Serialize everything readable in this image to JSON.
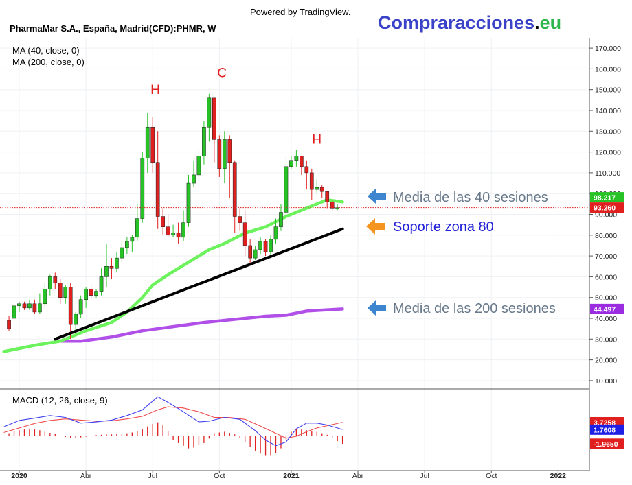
{
  "header": {
    "powered_by": "Powered by TradingView.",
    "symbol_title": "PharmaMar S.A., España, Madrid(CFD):PHMR, W",
    "brand_main": "Compraracciones",
    "brand_dot": ".",
    "brand_tld": "eu"
  },
  "legend": {
    "ma40": "MA (40, close, 0)",
    "ma200": "MA (200, close, 0)",
    "macd": "MACD (12, 26, close, 9)"
  },
  "colors": {
    "up_candle": "#26c226",
    "down_candle": "#e0201f",
    "ma40": "#6cf25c",
    "ma200": "#b050e8",
    "support": "#000000",
    "price_line": "#e0201f",
    "macd_line": "#3f3ff0",
    "signal_line": "#f04a4a",
    "histogram": "#e0201f",
    "brand_main": "#3b43c8",
    "brand_tld": "#2fb64a",
    "pattern_labels": "#e0201f",
    "annotation_text": "#66788a",
    "support_text": "#1f1fd6",
    "arrow_blue": "#3d86cf",
    "arrow_orange": "#f5941f"
  },
  "annotations": {
    "ma40": "Media de las 40 sesiones",
    "support": "Soporte zona 80",
    "ma200": "Media de las 200 sesiones"
  },
  "chart_data": {
    "type": "candlestick",
    "title": "PharmaMar S.A., España, Madrid(CFD):PHMR, W",
    "y_axis": {
      "min": 0,
      "max": 175,
      "ticks": [
        "10.000",
        "20.000",
        "30.000",
        "40.000",
        "50.000",
        "60.000",
        "70.000",
        "80.000",
        "90.000",
        "100.000",
        "110.000",
        "120.000",
        "130.000",
        "140.000",
        "150.000",
        "160.000",
        "170.000"
      ]
    },
    "x_axis": {
      "tick_labels": [
        "2020",
        "Abr",
        "Jul",
        "Oct",
        "2021",
        "Abr",
        "Jul",
        "Oct",
        "2022"
      ],
      "tick_weeks": [
        0,
        13,
        26,
        39,
        53,
        66,
        79,
        92,
        105
      ]
    },
    "price_badges": [
      {
        "label": "98.217",
        "value": 98.217,
        "color": "#26c226"
      },
      {
        "label": "93.260",
        "value": 93.26,
        "color": "#e0201f"
      },
      {
        "label": "44.497",
        "value": 44.497,
        "color": "#9c2ce0"
      }
    ],
    "last_price": 93.26,
    "candles": [
      [
        -2,
        39,
        35,
        41,
        34
      ],
      [
        -1,
        40,
        46,
        47,
        38
      ],
      [
        0,
        46,
        47,
        48,
        43
      ],
      [
        1,
        47,
        45,
        48,
        44
      ],
      [
        2,
        45,
        47,
        49,
        44
      ],
      [
        3,
        47,
        43,
        49,
        42
      ],
      [
        4,
        43,
        47,
        52,
        42
      ],
      [
        5,
        47,
        54,
        57,
        45
      ],
      [
        6,
        54,
        60,
        61,
        51
      ],
      [
        7,
        60,
        57,
        62,
        54
      ],
      [
        8,
        57,
        50,
        59,
        47
      ],
      [
        9,
        50,
        55,
        56,
        47
      ],
      [
        10,
        55,
        37,
        57,
        30
      ],
      [
        11,
        37,
        42,
        43,
        34
      ],
      [
        12,
        42,
        49,
        51,
        40
      ],
      [
        13,
        49,
        54,
        55,
        45
      ],
      [
        14,
        54,
        51,
        56,
        49
      ],
      [
        15,
        51,
        53,
        54,
        50
      ],
      [
        16,
        53,
        60,
        64,
        51
      ],
      [
        17,
        60,
        65,
        76,
        55
      ],
      [
        18,
        65,
        64,
        69,
        59
      ],
      [
        19,
        64,
        69,
        72,
        62
      ],
      [
        20,
        69,
        74,
        77,
        67
      ],
      [
        21,
        74,
        77,
        79,
        71
      ],
      [
        22,
        77,
        79,
        80,
        72
      ],
      [
        23,
        79,
        88,
        95,
        77
      ],
      [
        24,
        88,
        117,
        120,
        86
      ],
      [
        25,
        117,
        132,
        139,
        110
      ],
      [
        26,
        132,
        115,
        137,
        110
      ],
      [
        27,
        115,
        89,
        130,
        83
      ],
      [
        28,
        89,
        84,
        93,
        80
      ],
      [
        29,
        84,
        80,
        90,
        79
      ],
      [
        30,
        80,
        81,
        85,
        79
      ],
      [
        31,
        81,
        79,
        86,
        76
      ],
      [
        32,
        79,
        86,
        92,
        77
      ],
      [
        33,
        86,
        105,
        109,
        84
      ],
      [
        34,
        105,
        109,
        116,
        103
      ],
      [
        35,
        109,
        118,
        122,
        106
      ],
      [
        36,
        118,
        132,
        135,
        114
      ],
      [
        37,
        132,
        146,
        148,
        125
      ],
      [
        38,
        146,
        126,
        130,
        115
      ],
      [
        39,
        126,
        112,
        128,
        108
      ],
      [
        40,
        112,
        126,
        130,
        105
      ],
      [
        41,
        126,
        115,
        128,
        98
      ],
      [
        42,
        115,
        89,
        116,
        81
      ],
      [
        43,
        89,
        86,
        93,
        82
      ],
      [
        44,
        86,
        75,
        92,
        70
      ],
      [
        45,
        75,
        69,
        78,
        66
      ],
      [
        46,
        69,
        73,
        75,
        68
      ],
      [
        47,
        73,
        77,
        79,
        71
      ],
      [
        48,
        77,
        72,
        78,
        70
      ],
      [
        49,
        72,
        78,
        80,
        70
      ],
      [
        50,
        78,
        84,
        88,
        76
      ],
      [
        51,
        84,
        91,
        95,
        82
      ],
      [
        52,
        91,
        113,
        118,
        86
      ],
      [
        53,
        113,
        116,
        118,
        112
      ],
      [
        54,
        116,
        118,
        121,
        113
      ],
      [
        55,
        118,
        113,
        117,
        109
      ],
      [
        56,
        113,
        110,
        116,
        102
      ],
      [
        57,
        110,
        102,
        112,
        97
      ],
      [
        58,
        102,
        103,
        107,
        100
      ],
      [
        59,
        103,
        101,
        104,
        98
      ],
      [
        60,
        101,
        96,
        101,
        93
      ],
      [
        61,
        96,
        93,
        97,
        92
      ],
      [
        62,
        93,
        93.26,
        95,
        92
      ]
    ],
    "ma40_points": [
      [
        -3,
        24
      ],
      [
        3,
        27
      ],
      [
        8,
        29
      ],
      [
        13,
        34
      ],
      [
        18,
        38
      ],
      [
        21,
        43
      ],
      [
        24,
        50
      ],
      [
        26,
        56
      ],
      [
        29,
        61
      ],
      [
        33,
        67
      ],
      [
        37,
        73
      ],
      [
        40,
        76
      ],
      [
        44,
        81
      ],
      [
        48,
        84
      ],
      [
        52,
        89
      ],
      [
        56,
        93
      ],
      [
        60,
        97
      ],
      [
        63,
        96
      ]
    ],
    "ma200_points": [
      [
        7,
        29
      ],
      [
        12,
        29
      ],
      [
        18,
        31
      ],
      [
        24,
        34
      ],
      [
        30,
        36
      ],
      [
        36,
        38
      ],
      [
        42,
        39.5
      ],
      [
        48,
        41
      ],
      [
        52,
        41.5
      ],
      [
        56,
        43.5
      ],
      [
        63,
        44.5
      ]
    ],
    "support_line": {
      "x1": 7,
      "y1": 30,
      "x2": 63,
      "y2": 83
    },
    "pattern_labels": [
      {
        "text": "H",
        "week": 26.5,
        "value": 148
      },
      {
        "text": "C",
        "week": 39.5,
        "value": 156
      },
      {
        "text": "H",
        "week": 58,
        "value": 124
      }
    ],
    "macd": {
      "min": -6,
      "max": 10,
      "badges": [
        {
          "label": "3.7258",
          "value": 3.7258,
          "color": "#e0201f"
        },
        {
          "label": "1.7608",
          "value": 1.7608,
          "color": "#1f1fe6"
        },
        {
          "label": "-1.9650",
          "value": -1.965,
          "color": "#e0201f"
        }
      ],
      "macd_points": [
        [
          -3,
          2.5
        ],
        [
          0,
          4.2
        ],
        [
          3,
          4.8
        ],
        [
          6,
          5.5
        ],
        [
          9,
          5
        ],
        [
          12,
          3.5
        ],
        [
          15,
          3.8
        ],
        [
          18,
          4.3
        ],
        [
          21,
          5.5
        ],
        [
          24,
          7
        ],
        [
          27,
          10.5
        ],
        [
          29,
          9
        ],
        [
          32,
          6.5
        ],
        [
          35,
          3.8
        ],
        [
          37,
          4
        ],
        [
          40,
          5
        ],
        [
          43,
          4.5
        ],
        [
          46,
          1.5
        ],
        [
          48,
          -1
        ],
        [
          50,
          -2.5
        ],
        [
          52,
          -1.5
        ],
        [
          54,
          2
        ],
        [
          56,
          3.5
        ],
        [
          58,
          3.5
        ],
        [
          60,
          3
        ],
        [
          63,
          1.8
        ]
      ],
      "signal_points": [
        [
          -3,
          1
        ],
        [
          0,
          2.2
        ],
        [
          3,
          3.4
        ],
        [
          6,
          4.2
        ],
        [
          9,
          4.6
        ],
        [
          12,
          4.3
        ],
        [
          15,
          4
        ],
        [
          18,
          4.1
        ],
        [
          21,
          4.6
        ],
        [
          24,
          5.3
        ],
        [
          27,
          7
        ],
        [
          29,
          7.8
        ],
        [
          32,
          7.5
        ],
        [
          35,
          6.5
        ],
        [
          38,
          5
        ],
        [
          41,
          5
        ],
        [
          44,
          4.5
        ],
        [
          47,
          2.7
        ],
        [
          50,
          0.8
        ],
        [
          52,
          -0.5
        ],
        [
          54,
          0
        ],
        [
          56,
          1.2
        ],
        [
          58,
          2.2
        ],
        [
          60,
          2.8
        ],
        [
          63,
          3.7
        ]
      ],
      "histogram": [
        [
          -2,
          0.8
        ],
        [
          -1,
          1.3
        ],
        [
          0,
          1.6
        ],
        [
          1,
          1.8
        ],
        [
          2,
          2
        ],
        [
          3,
          1.8
        ],
        [
          4,
          1.6
        ],
        [
          5,
          1.2
        ],
        [
          6,
          0.9
        ],
        [
          7,
          0.6
        ],
        [
          8,
          0.2
        ],
        [
          9,
          -0.2
        ],
        [
          10,
          -0.4
        ],
        [
          11,
          -0.5
        ],
        [
          12,
          -0.3
        ],
        [
          13,
          -0.1
        ],
        [
          14,
          0.1
        ],
        [
          15,
          0.3
        ],
        [
          16,
          0.4
        ],
        [
          17,
          0.5
        ],
        [
          18,
          0.5
        ],
        [
          19,
          0.6
        ],
        [
          20,
          0.6
        ],
        [
          21,
          0.8
        ],
        [
          22,
          1
        ],
        [
          23,
          1.3
        ],
        [
          24,
          1.8
        ],
        [
          25,
          2.6
        ],
        [
          26,
          3.3
        ],
        [
          27,
          3.7
        ],
        [
          28,
          3
        ],
        [
          29,
          1.4
        ],
        [
          30,
          -1
        ],
        [
          31,
          -1.8
        ],
        [
          32,
          -2.5
        ],
        [
          33,
          -3.2
        ],
        [
          34,
          -3
        ],
        [
          35,
          -2.2
        ],
        [
          36,
          -1.8
        ],
        [
          37,
          -0.6
        ],
        [
          38,
          0.8
        ],
        [
          39,
          1
        ],
        [
          40,
          1.2
        ],
        [
          41,
          0.9
        ],
        [
          42,
          0.5
        ],
        [
          43,
          -0.4
        ],
        [
          44,
          -1.5
        ],
        [
          45,
          -2.8
        ],
        [
          46,
          -3.8
        ],
        [
          47,
          -4.6
        ],
        [
          48,
          -5
        ],
        [
          49,
          -5
        ],
        [
          50,
          -4.5
        ],
        [
          51,
          -3.2
        ],
        [
          52,
          -1
        ],
        [
          53,
          1.2
        ],
        [
          54,
          1.9
        ],
        [
          55,
          1.8
        ],
        [
          56,
          1.6
        ],
        [
          57,
          1.4
        ],
        [
          58,
          1.2
        ],
        [
          59,
          0.8
        ],
        [
          60,
          0.4
        ],
        [
          61,
          -0.3
        ],
        [
          62,
          -1.3
        ],
        [
          63,
          -2
        ]
      ]
    }
  }
}
